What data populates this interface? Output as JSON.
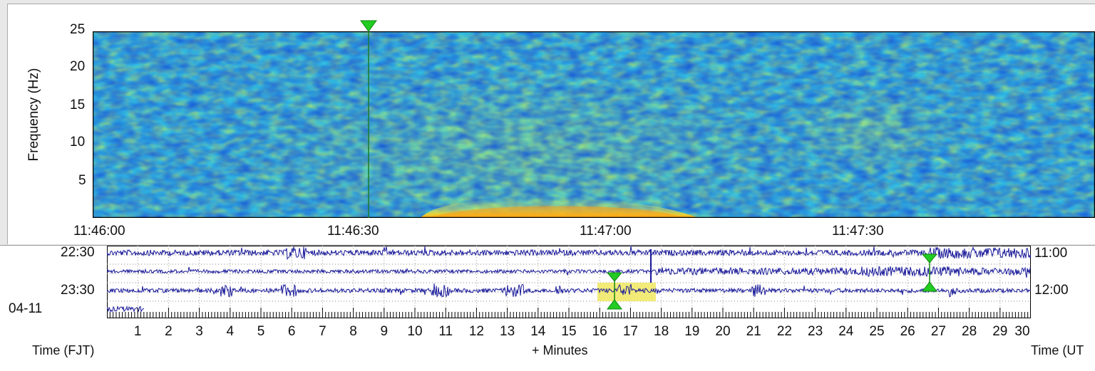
{
  "spectrogram": {
    "y_axis_label": "Frequency (Hz)",
    "y_ticks": [
      "25",
      "20",
      "15",
      "10",
      "5"
    ],
    "x_ticks": [
      "11:46:00",
      "11:46:30",
      "11:47:00",
      "11:47:30"
    ],
    "marker_icon": "green-triangle-down-icon"
  },
  "helicorder": {
    "left_times": [
      "22:30",
      "23:30"
    ],
    "date_label": "04-11",
    "right_times": [
      "11:00",
      "12:00"
    ],
    "minute_ticks": [
      "1",
      "2",
      "3",
      "4",
      "5",
      "6",
      "7",
      "8",
      "9",
      "10",
      "11",
      "12",
      "13",
      "14",
      "15",
      "16",
      "17",
      "18",
      "19",
      "20",
      "21",
      "22",
      "23",
      "24",
      "25",
      "26",
      "27",
      "28",
      "29",
      "30"
    ],
    "left_axis_label": "Time (FJT)",
    "x_axis_label": "+ Minutes",
    "right_axis_label": "Time (UT"
  },
  "colors": {
    "trace": "#1a1a9a",
    "marker": "#22aa22",
    "highlight": "#f0e860"
  }
}
